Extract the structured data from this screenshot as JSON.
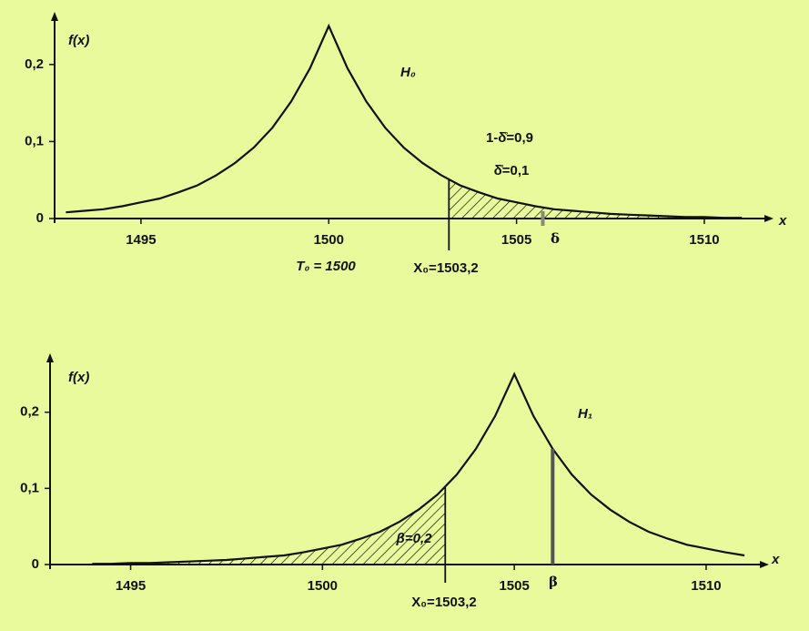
{
  "chart_data": [
    {
      "type": "line",
      "ylabel": "f(x)",
      "xlabel": "x",
      "curve_label": "H₀",
      "xlim": [
        1492.7,
        1511.6
      ],
      "ylim": [
        0,
        0.266
      ],
      "xticks": [
        1495,
        1500,
        1505,
        1510
      ],
      "yticks": [
        {
          "value": 0,
          "label": "0"
        },
        {
          "value": 0.1,
          "label": "0,1"
        },
        {
          "value": 0.2,
          "label": "0,2"
        }
      ],
      "x": [
        1493,
        1493.5,
        1494,
        1494.5,
        1495,
        1495.5,
        1496,
        1496.5,
        1497,
        1497.5,
        1498,
        1498.5,
        1499,
        1499.5,
        1500,
        1500.5,
        1501,
        1501.5,
        1502,
        1502.5,
        1503,
        1503.5,
        1504,
        1504.5,
        1505,
        1505.5,
        1506,
        1506.5,
        1507,
        1507.5,
        1508,
        1508.5,
        1509,
        1509.5,
        1510,
        1510.5,
        1511
      ],
      "values": [
        0.008,
        0.01,
        0.012,
        0.016,
        0.021,
        0.026,
        0.034,
        0.043,
        0.056,
        0.072,
        0.092,
        0.118,
        0.152,
        0.195,
        0.25,
        0.195,
        0.152,
        0.118,
        0.092,
        0.072,
        0.056,
        0.043,
        0.034,
        0.026,
        0.021,
        0.016,
        0.012,
        0.01,
        0.008,
        0.006,
        0.005,
        0.004,
        0.003,
        0.002,
        0.002,
        0.001,
        0.001
      ],
      "center_label": "T₀ = 1500",
      "threshold": 1503.2,
      "threshold_label": "X₀=1503,2",
      "shade": "right",
      "area_labels": [
        "1-δ̊=0,9",
        "δ̊=0,1"
      ],
      "marker": {
        "x": 1505.7,
        "label": "δ"
      }
    },
    {
      "type": "line",
      "ylabel": "f(x)",
      "xlabel": "x",
      "curve_label": "H₁",
      "xlim": [
        1492.9,
        1511.4
      ],
      "ylim": [
        0,
        0.275
      ],
      "xticks": [
        1495,
        1500,
        1505,
        1510
      ],
      "yticks": [
        {
          "value": 0,
          "label": "0"
        },
        {
          "value": 0.1,
          "label": "0,1"
        },
        {
          "value": 0.2,
          "label": "0,2"
        }
      ],
      "x": [
        1494,
        1494.5,
        1495,
        1495.5,
        1496,
        1496.5,
        1497,
        1497.5,
        1498,
        1498.5,
        1499,
        1499.5,
        1500,
        1500.5,
        1501,
        1501.5,
        1502,
        1502.5,
        1503,
        1503.5,
        1504,
        1504.5,
        1505,
        1505.5,
        1506,
        1506.5,
        1507,
        1507.5,
        1508,
        1508.5,
        1509,
        1509.5,
        1510,
        1510.5,
        1511
      ],
      "values": [
        0.001,
        0.001,
        0.002,
        0.002,
        0.003,
        0.004,
        0.005,
        0.006,
        0.008,
        0.01,
        0.012,
        0.016,
        0.021,
        0.026,
        0.034,
        0.043,
        0.056,
        0.072,
        0.092,
        0.118,
        0.152,
        0.195,
        0.25,
        0.195,
        0.152,
        0.118,
        0.092,
        0.072,
        0.056,
        0.043,
        0.034,
        0.026,
        0.021,
        0.016,
        0.012
      ],
      "threshold": 1503.2,
      "threshold_label": "X₀=1503,2",
      "shade": "left",
      "area_labels": [
        "β=0,2"
      ],
      "marker": {
        "x": 1506,
        "label": "β"
      }
    }
  ]
}
